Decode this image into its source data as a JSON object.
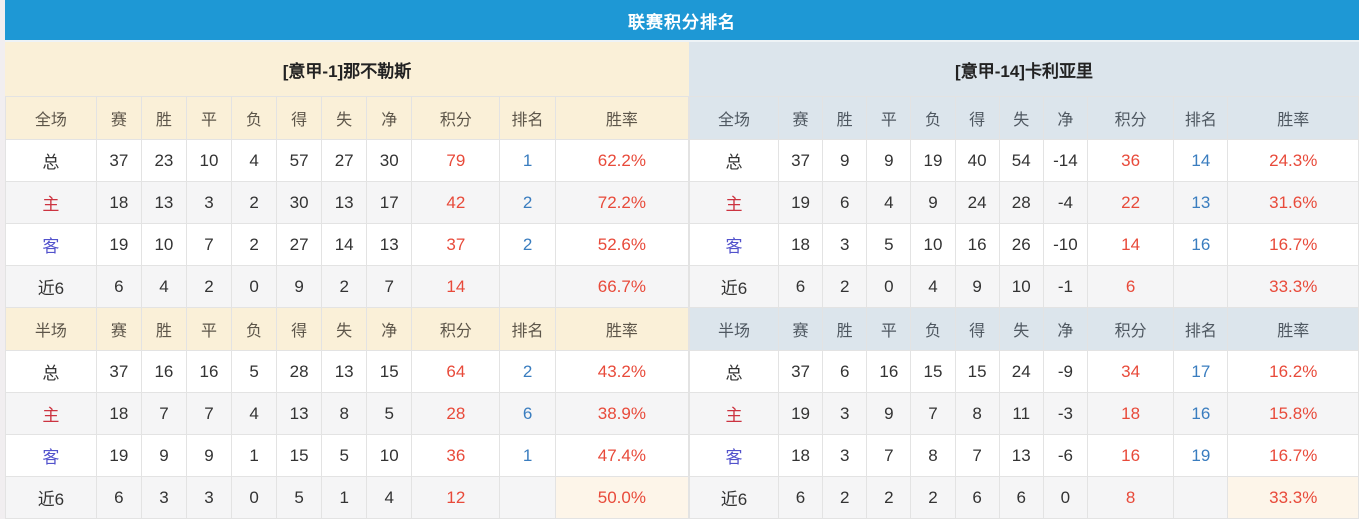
{
  "page": {
    "title": "联赛积分排名"
  },
  "colors": {
    "title_bar_blue": "#1e98d5",
    "left_theme_cream": "#faf0d8",
    "right_theme_blue": "#dce5ec",
    "points_and_rate_red": "#e84a3a",
    "rank_blue": "#3a7dbf",
    "home_label_red": "#cc3340",
    "away_label_blue": "#5252cc",
    "alt_row_gray": "#f5f5f6",
    "rate_highlight_cream": "#fdf5e9"
  },
  "sections": {
    "full": "全场",
    "half": "半场"
  },
  "columns": {
    "stat": [
      "赛",
      "胜",
      "平",
      "负",
      "得",
      "失",
      "净"
    ],
    "points": "积分",
    "rank": "排名",
    "rate": "胜率"
  },
  "teams": [
    {
      "name": "[意甲-1]那不勒斯",
      "theme": "cream",
      "full": [
        {
          "label": "总",
          "label_type": "total",
          "stats": [
            "37",
            "23",
            "10",
            "4",
            "57",
            "27",
            "30"
          ],
          "points": "79",
          "rank": "1",
          "rate": "62.2%",
          "rate_highlight": false
        },
        {
          "label": "主",
          "label_type": "home",
          "stats": [
            "18",
            "13",
            "3",
            "2",
            "30",
            "13",
            "17"
          ],
          "points": "42",
          "rank": "2",
          "rate": "72.2%",
          "rate_highlight": false
        },
        {
          "label": "客",
          "label_type": "away",
          "stats": [
            "19",
            "10",
            "7",
            "2",
            "27",
            "14",
            "13"
          ],
          "points": "37",
          "rank": "2",
          "rate": "52.6%",
          "rate_highlight": false
        },
        {
          "label": "近6",
          "label_type": "recent",
          "stats": [
            "6",
            "4",
            "2",
            "0",
            "9",
            "2",
            "7"
          ],
          "points": "14",
          "rank": "",
          "rate": "66.7%",
          "rate_highlight": false
        }
      ],
      "half": [
        {
          "label": "总",
          "label_type": "total",
          "stats": [
            "37",
            "16",
            "16",
            "5",
            "28",
            "13",
            "15"
          ],
          "points": "64",
          "rank": "2",
          "rate": "43.2%",
          "rate_highlight": false
        },
        {
          "label": "主",
          "label_type": "home",
          "stats": [
            "18",
            "7",
            "7",
            "4",
            "13",
            "8",
            "5"
          ],
          "points": "28",
          "rank": "6",
          "rate": "38.9%",
          "rate_highlight": false
        },
        {
          "label": "客",
          "label_type": "away",
          "stats": [
            "19",
            "9",
            "9",
            "1",
            "15",
            "5",
            "10"
          ],
          "points": "36",
          "rank": "1",
          "rate": "47.4%",
          "rate_highlight": false
        },
        {
          "label": "近6",
          "label_type": "recent",
          "stats": [
            "6",
            "3",
            "3",
            "0",
            "5",
            "1",
            "4"
          ],
          "points": "12",
          "rank": "",
          "rate": "50.0%",
          "rate_highlight": true
        }
      ]
    },
    {
      "name": "[意甲-14]卡利亚里",
      "theme": "blue",
      "full": [
        {
          "label": "总",
          "label_type": "total",
          "stats": [
            "37",
            "9",
            "9",
            "19",
            "40",
            "54",
            "-14"
          ],
          "points": "36",
          "rank": "14",
          "rate": "24.3%",
          "rate_highlight": false
        },
        {
          "label": "主",
          "label_type": "home",
          "stats": [
            "19",
            "6",
            "4",
            "9",
            "24",
            "28",
            "-4"
          ],
          "points": "22",
          "rank": "13",
          "rate": "31.6%",
          "rate_highlight": false
        },
        {
          "label": "客",
          "label_type": "away",
          "stats": [
            "18",
            "3",
            "5",
            "10",
            "16",
            "26",
            "-10"
          ],
          "points": "14",
          "rank": "16",
          "rate": "16.7%",
          "rate_highlight": false
        },
        {
          "label": "近6",
          "label_type": "recent",
          "stats": [
            "6",
            "2",
            "0",
            "4",
            "9",
            "10",
            "-1"
          ],
          "points": "6",
          "rank": "",
          "rate": "33.3%",
          "rate_highlight": false
        }
      ],
      "half": [
        {
          "label": "总",
          "label_type": "total",
          "stats": [
            "37",
            "6",
            "16",
            "15",
            "15",
            "24",
            "-9"
          ],
          "points": "34",
          "rank": "17",
          "rate": "16.2%",
          "rate_highlight": false
        },
        {
          "label": "主",
          "label_type": "home",
          "stats": [
            "19",
            "3",
            "9",
            "7",
            "8",
            "11",
            "-3"
          ],
          "points": "18",
          "rank": "16",
          "rate": "15.8%",
          "rate_highlight": false
        },
        {
          "label": "客",
          "label_type": "away",
          "stats": [
            "18",
            "3",
            "7",
            "8",
            "7",
            "13",
            "-6"
          ],
          "points": "16",
          "rank": "19",
          "rate": "16.7%",
          "rate_highlight": false
        },
        {
          "label": "近6",
          "label_type": "recent",
          "stats": [
            "6",
            "2",
            "2",
            "2",
            "6",
            "6",
            "0"
          ],
          "points": "8",
          "rank": "",
          "rate": "33.3%",
          "rate_highlight": true
        }
      ]
    }
  ]
}
